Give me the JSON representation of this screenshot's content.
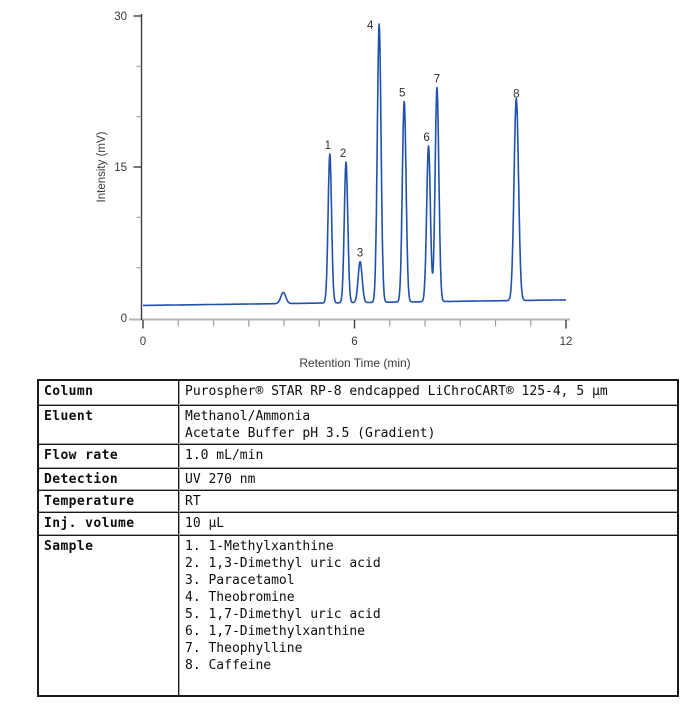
{
  "chart_data": {
    "type": "line",
    "title": "",
    "xlabel": "Retention Time (min)",
    "ylabel": "Intensity (mV)",
    "xlim": [
      0,
      12
    ],
    "ylim": [
      0,
      30
    ],
    "x_major_ticks": [
      0,
      6,
      12
    ],
    "x_minor_tick_interval": 1,
    "y_major_ticks": [
      0,
      15,
      30
    ],
    "y_minor_ticks": [
      5,
      10,
      20,
      25
    ],
    "grid": "off",
    "legend": "none",
    "line_color": "#2151ad",
    "axis_color": "#3c3c3c",
    "axis_baseline_color": "#b5b5b5",
    "minor_tick_color": "#a0a0a0",
    "text_color": "#3a3a3a",
    "baseline_mv_start": 1.25,
    "baseline_mv_end": 1.8,
    "unlabeled_bump": {
      "t": 3.98,
      "height_mv": 1.1,
      "width": 0.1
    },
    "peaks": [
      {
        "label": "1",
        "t": 5.3,
        "mv": 16.3,
        "width": 0.07,
        "label_dx": -2,
        "label_dy": 0
      },
      {
        "label": "2",
        "t": 5.76,
        "mv": 15.5,
        "width": 0.07,
        "label_dx": -3,
        "label_dy": 0
      },
      {
        "label": "3",
        "t": 6.16,
        "mv": 5.6,
        "width": 0.08,
        "label_dx": 0,
        "label_dy": 0
      },
      {
        "label": "4",
        "t": 6.7,
        "mv": 29.2,
        "width": 0.075,
        "label_dx": -9,
        "label_dy": 10
      },
      {
        "label": "5",
        "t": 7.41,
        "mv": 21.5,
        "width": 0.075,
        "label_dx": -2,
        "label_dy": 0
      },
      {
        "label": "6",
        "t": 8.1,
        "mv": 17.1,
        "width": 0.075,
        "label_dx": -2,
        "label_dy": 0
      },
      {
        "label": "7",
        "t": 8.34,
        "mv": 22.9,
        "width": 0.075,
        "label_dx": 0,
        "label_dy": 0
      },
      {
        "label": "8",
        "t": 10.59,
        "mv": 21.8,
        "width": 0.09,
        "label_dx": 0,
        "label_dy": 4
      }
    ]
  },
  "table": {
    "rows": [
      {
        "label": "Column",
        "lines": [
          "Purospher® STAR RP-8 endcapped LiChroCART® 125-4, 5 μm"
        ]
      },
      {
        "label": "Eluent",
        "lines": [
          "Methanol/Ammonia",
          "Acetate Buffer pH 3.5 (Gradient)"
        ]
      },
      {
        "label": "Flow rate",
        "lines": [
          "1.0 mL/min"
        ]
      },
      {
        "label": "Detection",
        "lines": [
          "UV 270 nm"
        ]
      },
      {
        "label": "Temperature",
        "lines": [
          "RT"
        ]
      },
      {
        "label": "Inj. volume",
        "lines": [
          "10 μL"
        ]
      },
      {
        "label": "Sample",
        "lines": [
          "1. 1-Methylxanthine",
          "2. 1,3-Dimethyl uric acid",
          "3. Paracetamol",
          "4. Theobromine",
          "5. 1,7-Dimethyl uric acid",
          "6. 1,7-Dimethylxanthine",
          "7. Theophylline",
          "8. Caffeine"
        ]
      }
    ]
  }
}
